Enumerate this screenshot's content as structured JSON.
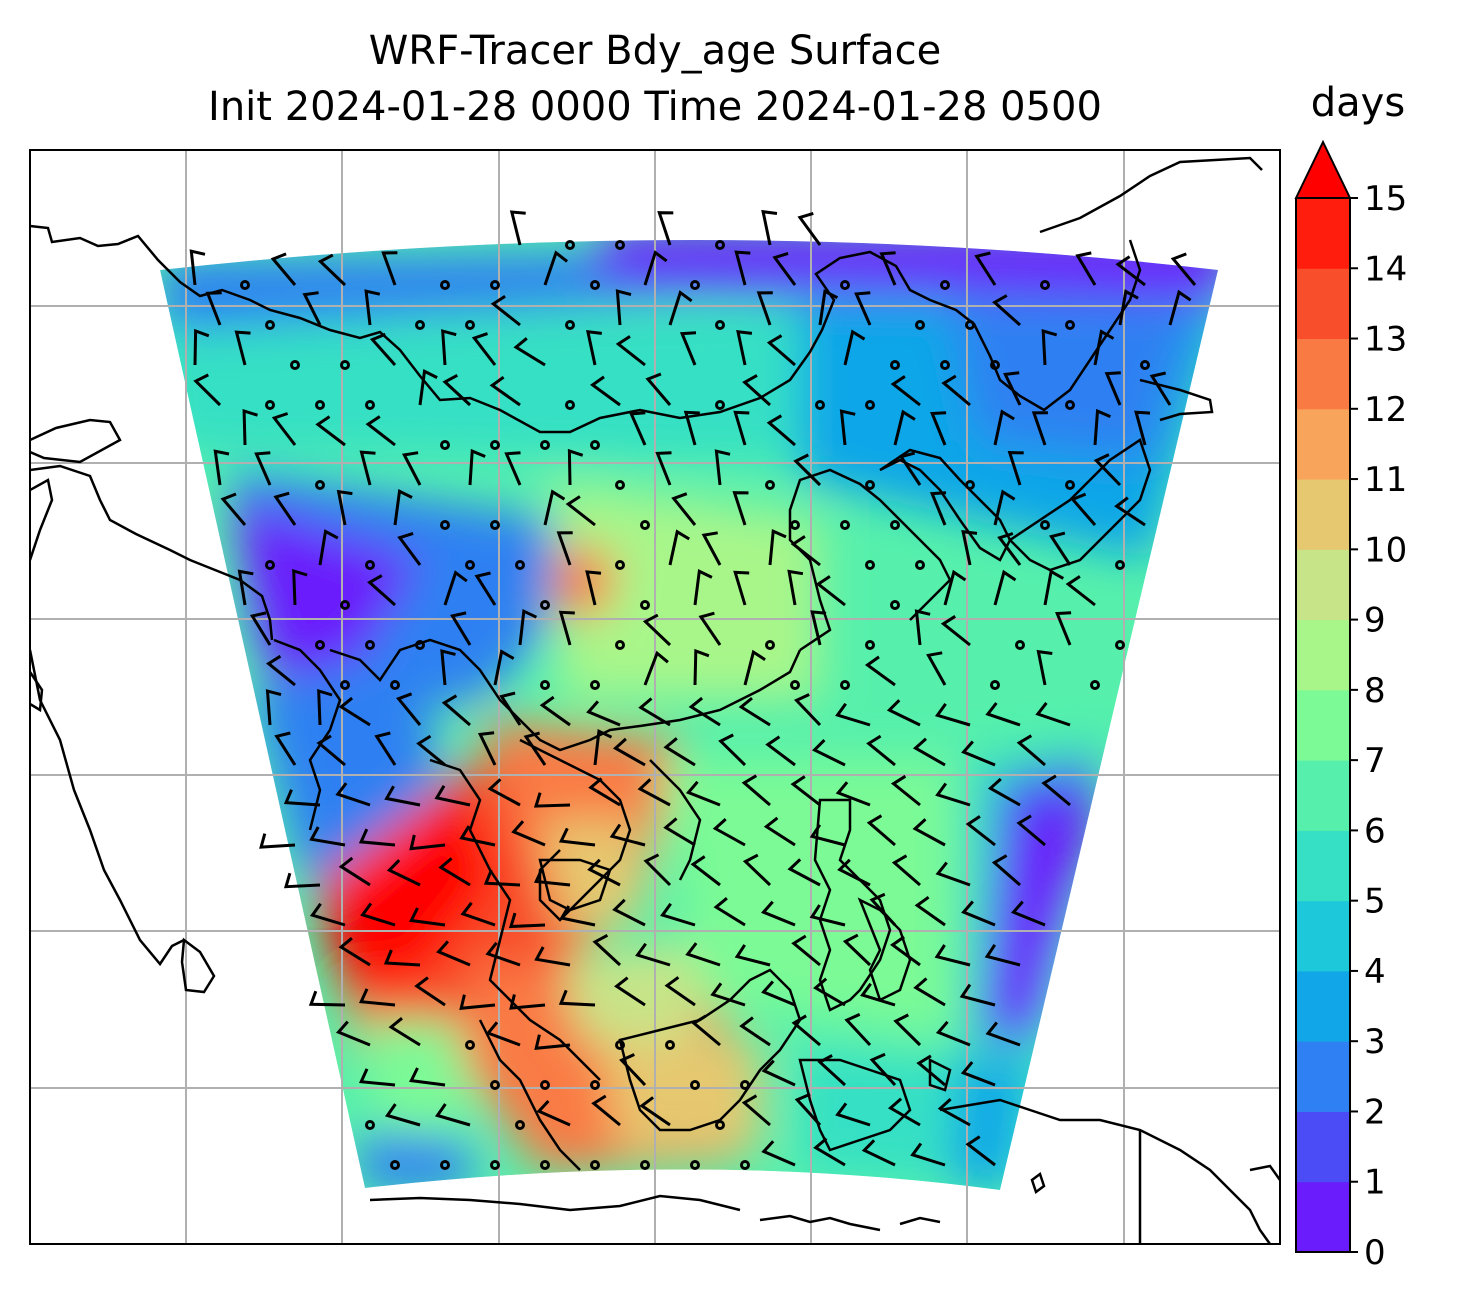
{
  "title": {
    "line1": "WRF-Tracer Bdy_age Surface",
    "line2": "Init 2024-01-28 0000 Time 2024-01-28 0500"
  },
  "colorbar": {
    "label": "days",
    "ticks": [
      "0",
      "1",
      "2",
      "3",
      "4",
      "5",
      "6",
      "7",
      "8",
      "9",
      "10",
      "11",
      "12",
      "13",
      "14",
      "15"
    ],
    "extend": "max",
    "colors": [
      "#6a1cfc",
      "#4b4cf6",
      "#2f80f2",
      "#10a6e8",
      "#1cc8d9",
      "#36e0c4",
      "#56f0ac",
      "#7cfa96",
      "#a8f68a",
      "#c8e488",
      "#e6c870",
      "#f8a45a",
      "#fa7a44",
      "#f84e2c",
      "#ff1e0e",
      "#ff0000"
    ]
  },
  "map": {
    "gridlines": true,
    "projection": "lambert-conformal",
    "field": "boundary tracer age (days)",
    "wind_barbs": true
  }
}
